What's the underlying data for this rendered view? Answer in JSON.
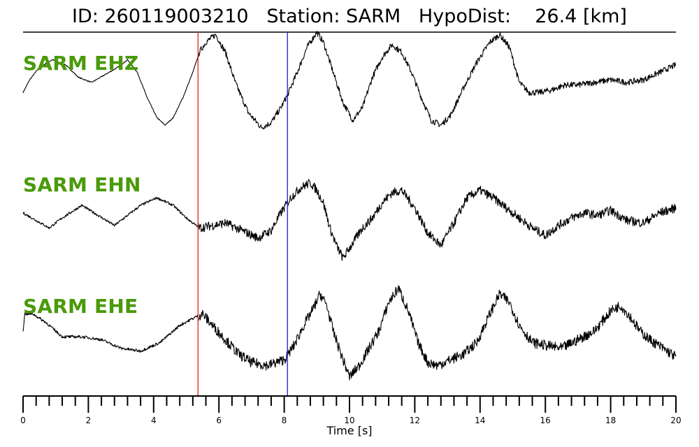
{
  "title": "ID: 260119003210   Station: SARM   HypoDist:    26.4 [km]",
  "chart_data": {
    "type": "line",
    "xlabel": "Time [s]",
    "xlim": [
      0,
      20
    ],
    "xticks": [
      "0",
      "2",
      "4",
      "6",
      "8",
      "10",
      "12",
      "14",
      "16",
      "18",
      "20"
    ],
    "minor_tick_step": 0.4,
    "markers": [
      {
        "time": 5.36,
        "color": "#e8302a"
      },
      {
        "time": 8.1,
        "color": "#2b2bd9"
      }
    ],
    "series": [
      {
        "name": "SARM EHZ",
        "x": [
          0,
          0.2,
          0.5,
          0.9,
          1.3,
          1.7,
          2.1,
          2.5,
          2.9,
          3.2,
          3.5,
          3.8,
          4.1,
          4.35,
          4.6,
          4.9,
          5.2,
          5.4,
          5.6,
          5.9,
          6.2,
          6.5,
          6.9,
          7.3,
          7.6,
          7.9,
          8.1,
          8.4,
          8.7,
          9.0,
          9.2,
          9.5,
          9.8,
          10.1,
          10.4,
          10.7,
          11.0,
          11.3,
          11.6,
          11.9,
          12.2,
          12.5,
          12.8,
          13.1,
          13.5,
          13.9,
          14.3,
          14.6,
          14.9,
          15.2,
          15.5,
          15.8,
          16.2,
          16.6,
          17.0,
          17.5,
          18.0,
          18.5,
          19.0,
          19.5,
          20.0
        ],
        "y": [
          -0.2,
          0.05,
          0.3,
          0.45,
          0.35,
          0.1,
          0.0,
          0.15,
          0.3,
          0.45,
          0.2,
          -0.3,
          -0.7,
          -0.85,
          -0.7,
          -0.3,
          0.2,
          0.6,
          0.8,
          0.95,
          0.6,
          0.0,
          -0.6,
          -0.9,
          -0.8,
          -0.5,
          -0.25,
          0.2,
          0.7,
          1.0,
          0.8,
          0.2,
          -0.4,
          -0.75,
          -0.5,
          0.1,
          0.5,
          0.75,
          0.6,
          0.2,
          -0.3,
          -0.75,
          -0.85,
          -0.65,
          -0.1,
          0.4,
          0.8,
          0.95,
          0.7,
          0.0,
          -0.2,
          -0.2,
          -0.15,
          -0.05,
          -0.05,
          0.0,
          0.05,
          0.0,
          0.05,
          0.2,
          0.35
        ]
      },
      {
        "name": "SARM EHN",
        "x": [
          0,
          0.4,
          0.8,
          1.2,
          1.8,
          2.3,
          2.8,
          3.2,
          3.6,
          4.1,
          4.6,
          5.0,
          5.4,
          5.8,
          6.2,
          6.7,
          7.2,
          7.6,
          7.9,
          8.2,
          8.5,
          8.8,
          9.0,
          9.2,
          9.4,
          9.6,
          9.8,
          10.1,
          10.4,
          10.7,
          11.0,
          11.3,
          11.6,
          12.0,
          12.4,
          12.8,
          13.2,
          13.6,
          14.0,
          14.4,
          14.8,
          15.2,
          15.6,
          16.0,
          16.4,
          16.8,
          17.2,
          17.6,
          18.0,
          18.5,
          19.0,
          19.5,
          20.0
        ],
        "y": [
          0.1,
          -0.05,
          -0.2,
          0.0,
          0.25,
          0.05,
          -0.15,
          0.05,
          0.25,
          0.4,
          0.25,
          0.0,
          -0.2,
          -0.15,
          -0.1,
          -0.25,
          -0.4,
          -0.25,
          0.1,
          0.4,
          0.6,
          0.7,
          0.55,
          0.3,
          -0.2,
          -0.55,
          -0.8,
          -0.5,
          -0.2,
          0.0,
          0.3,
          0.5,
          0.55,
          0.2,
          -0.3,
          -0.55,
          -0.1,
          0.4,
          0.55,
          0.4,
          0.2,
          0.0,
          -0.2,
          -0.35,
          -0.15,
          0.0,
          0.1,
          0.05,
          0.15,
          -0.05,
          -0.1,
          0.1,
          0.2
        ]
      },
      {
        "name": "SARM EHE",
        "x": [
          0,
          0.05,
          0.3,
          0.7,
          1.2,
          1.8,
          2.4,
          3.0,
          3.6,
          4.2,
          4.8,
          5.3,
          5.5,
          5.8,
          6.2,
          6.6,
          7.0,
          7.5,
          8.0,
          8.3,
          8.6,
          8.9,
          9.1,
          9.3,
          9.5,
          9.8,
          10.0,
          10.3,
          10.6,
          10.9,
          11.2,
          11.5,
          11.8,
          12.1,
          12.4,
          12.7,
          13.1,
          13.5,
          13.9,
          14.3,
          14.6,
          14.9,
          15.2,
          15.6,
          16.0,
          16.5,
          17.0,
          17.5,
          18.0,
          18.3,
          18.6,
          18.9,
          19.2,
          19.6,
          20.0
        ],
        "y": [
          0.0,
          0.3,
          0.3,
          0.15,
          -0.1,
          -0.1,
          -0.15,
          -0.3,
          -0.35,
          -0.2,
          0.1,
          0.25,
          0.3,
          0.1,
          -0.15,
          -0.4,
          -0.55,
          -0.6,
          -0.5,
          -0.25,
          0.1,
          0.4,
          0.65,
          0.45,
          0.0,
          -0.5,
          -0.8,
          -0.6,
          -0.3,
          0.0,
          0.5,
          0.75,
          0.35,
          -0.2,
          -0.55,
          -0.6,
          -0.5,
          -0.4,
          -0.2,
          0.3,
          0.65,
          0.5,
          0.1,
          -0.2,
          -0.25,
          -0.3,
          -0.15,
          0.0,
          0.35,
          0.45,
          0.25,
          0.0,
          -0.15,
          -0.3,
          -0.45
        ]
      }
    ],
    "label_color": "#4a9a0a",
    "trace_color": "#000000"
  }
}
